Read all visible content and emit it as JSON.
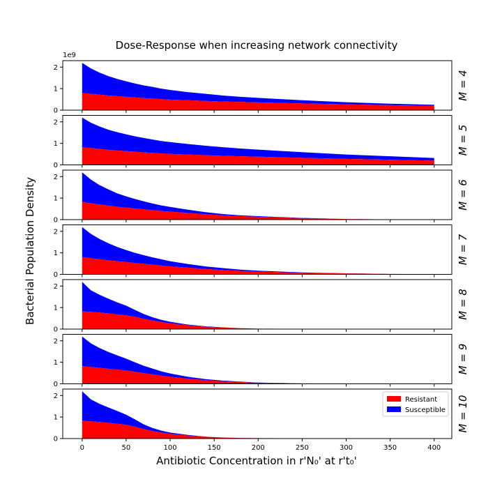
{
  "chart_data": {
    "type": "area",
    "title": "Dose-Response when increasing network connectivity",
    "xlabel": "Antibiotic Concentration in r'N₀' at r't₀'",
    "ylabel": "Bacterial Population Density",
    "y_offset_text": "1e9",
    "xlim": [
      -22,
      420
    ],
    "ylim": [
      0,
      2.3
    ],
    "x_ticks": [
      0,
      50,
      100,
      150,
      200,
      250,
      300,
      350,
      400
    ],
    "y_ticks": [
      0,
      1,
      2
    ],
    "stacked": true,
    "legend": {
      "position": "upper-right",
      "entries": [
        "Resistant",
        "Susceptible"
      ]
    },
    "colors": {
      "Resistant": "#ff0000",
      "Susceptible": "#0000ff"
    },
    "x": [
      0,
      10,
      20,
      30,
      40,
      50,
      60,
      70,
      80,
      90,
      100,
      120,
      140,
      160,
      180,
      200,
      250,
      300,
      350,
      400
    ],
    "panels": [
      {
        "label": "M = 4",
        "series": [
          {
            "name": "Resistant",
            "values": [
              0.8,
              0.76,
              0.72,
              0.68,
              0.65,
              0.62,
              0.59,
              0.56,
              0.54,
              0.51,
              0.49,
              0.46,
              0.43,
              0.4,
              0.38,
              0.36,
              0.31,
              0.27,
              0.23,
              0.2
            ]
          },
          {
            "name": "Susceptible",
            "values": [
              1.4,
              1.18,
              1.02,
              0.9,
              0.8,
              0.72,
              0.65,
              0.59,
              0.54,
              0.49,
              0.45,
              0.38,
              0.33,
              0.28,
              0.24,
              0.21,
              0.15,
              0.1,
              0.07,
              0.05
            ]
          }
        ]
      },
      {
        "label": "M = 5",
        "series": [
          {
            "name": "Resistant",
            "values": [
              0.82,
              0.78,
              0.74,
              0.7,
              0.67,
              0.64,
              0.61,
              0.58,
              0.56,
              0.53,
              0.51,
              0.48,
              0.45,
              0.42,
              0.4,
              0.38,
              0.33,
              0.28,
              0.24,
              0.2
            ]
          },
          {
            "name": "Susceptible",
            "values": [
              1.38,
              1.18,
              1.04,
              0.93,
              0.85,
              0.78,
              0.72,
              0.67,
              0.62,
              0.58,
              0.55,
              0.49,
              0.44,
              0.4,
              0.36,
              0.33,
              0.26,
              0.2,
              0.16,
              0.12
            ]
          }
        ]
      },
      {
        "label": "M = 6",
        "series": [
          {
            "name": "Resistant",
            "values": [
              0.82,
              0.76,
              0.7,
              0.65,
              0.6,
              0.56,
              0.52,
              0.48,
              0.44,
              0.4,
              0.37,
              0.31,
              0.25,
              0.2,
              0.16,
              0.13,
              0.07,
              0.03,
              0.01,
              0.0
            ]
          },
          {
            "name": "Susceptible",
            "values": [
              1.38,
              1.1,
              0.9,
              0.75,
              0.62,
              0.52,
              0.44,
              0.37,
              0.31,
              0.26,
              0.22,
              0.15,
              0.1,
              0.06,
              0.04,
              0.03,
              0.01,
              0.0,
              0.0,
              0.0
            ]
          }
        ]
      },
      {
        "label": "M = 7",
        "series": [
          {
            "name": "Resistant",
            "values": [
              0.8,
              0.75,
              0.7,
              0.65,
              0.61,
              0.57,
              0.53,
              0.49,
              0.45,
              0.41,
              0.37,
              0.31,
              0.25,
              0.2,
              0.16,
              0.13,
              0.07,
              0.04,
              0.02,
              0.01
            ]
          },
          {
            "name": "Susceptible",
            "values": [
              1.4,
              1.13,
              0.94,
              0.79,
              0.66,
              0.56,
              0.47,
              0.4,
              0.34,
              0.29,
              0.24,
              0.17,
              0.12,
              0.09,
              0.06,
              0.04,
              0.02,
              0.01,
              0.0,
              0.0
            ]
          }
        ]
      },
      {
        "label": "M = 8",
        "series": [
          {
            "name": "Resistant",
            "values": [
              0.82,
              0.8,
              0.77,
              0.73,
              0.68,
              0.64,
              0.57,
              0.48,
              0.4,
              0.33,
              0.27,
              0.18,
              0.11,
              0.07,
              0.04,
              0.02,
              0.01,
              0.0,
              0.0,
              0.0
            ]
          },
          {
            "name": "Susceptible",
            "values": [
              1.38,
              1.0,
              0.82,
              0.68,
              0.56,
              0.45,
              0.32,
              0.22,
              0.15,
              0.1,
              0.07,
              0.03,
              0.02,
              0.01,
              0.0,
              0.0,
              0.0,
              0.0,
              0.0,
              0.0
            ]
          }
        ]
      },
      {
        "label": "M = 9",
        "series": [
          {
            "name": "Resistant",
            "values": [
              0.82,
              0.78,
              0.74,
              0.7,
              0.66,
              0.62,
              0.56,
              0.5,
              0.44,
              0.38,
              0.33,
              0.24,
              0.17,
              0.12,
              0.08,
              0.05,
              0.02,
              0.01,
              0.0,
              0.0
            ]
          },
          {
            "name": "Susceptible",
            "values": [
              1.38,
              1.1,
              0.92,
              0.78,
              0.66,
              0.55,
              0.44,
              0.34,
              0.27,
              0.2,
              0.15,
              0.09,
              0.05,
              0.03,
              0.02,
              0.01,
              0.0,
              0.0,
              0.0,
              0.0
            ]
          }
        ]
      },
      {
        "label": "M = 10",
        "series": [
          {
            "name": "Resistant",
            "values": [
              0.82,
              0.8,
              0.77,
              0.73,
              0.69,
              0.64,
              0.55,
              0.44,
              0.35,
              0.28,
              0.22,
              0.14,
              0.08,
              0.05,
              0.03,
              0.02,
              0.01,
              0.0,
              0.0,
              0.0
            ]
          },
          {
            "name": "Susceptible",
            "values": [
              1.38,
              1.02,
              0.84,
              0.71,
              0.59,
              0.47,
              0.34,
              0.22,
              0.14,
              0.09,
              0.06,
              0.03,
              0.01,
              0.0,
              0.0,
              0.0,
              0.0,
              0.0,
              0.0,
              0.0
            ]
          }
        ]
      }
    ]
  }
}
